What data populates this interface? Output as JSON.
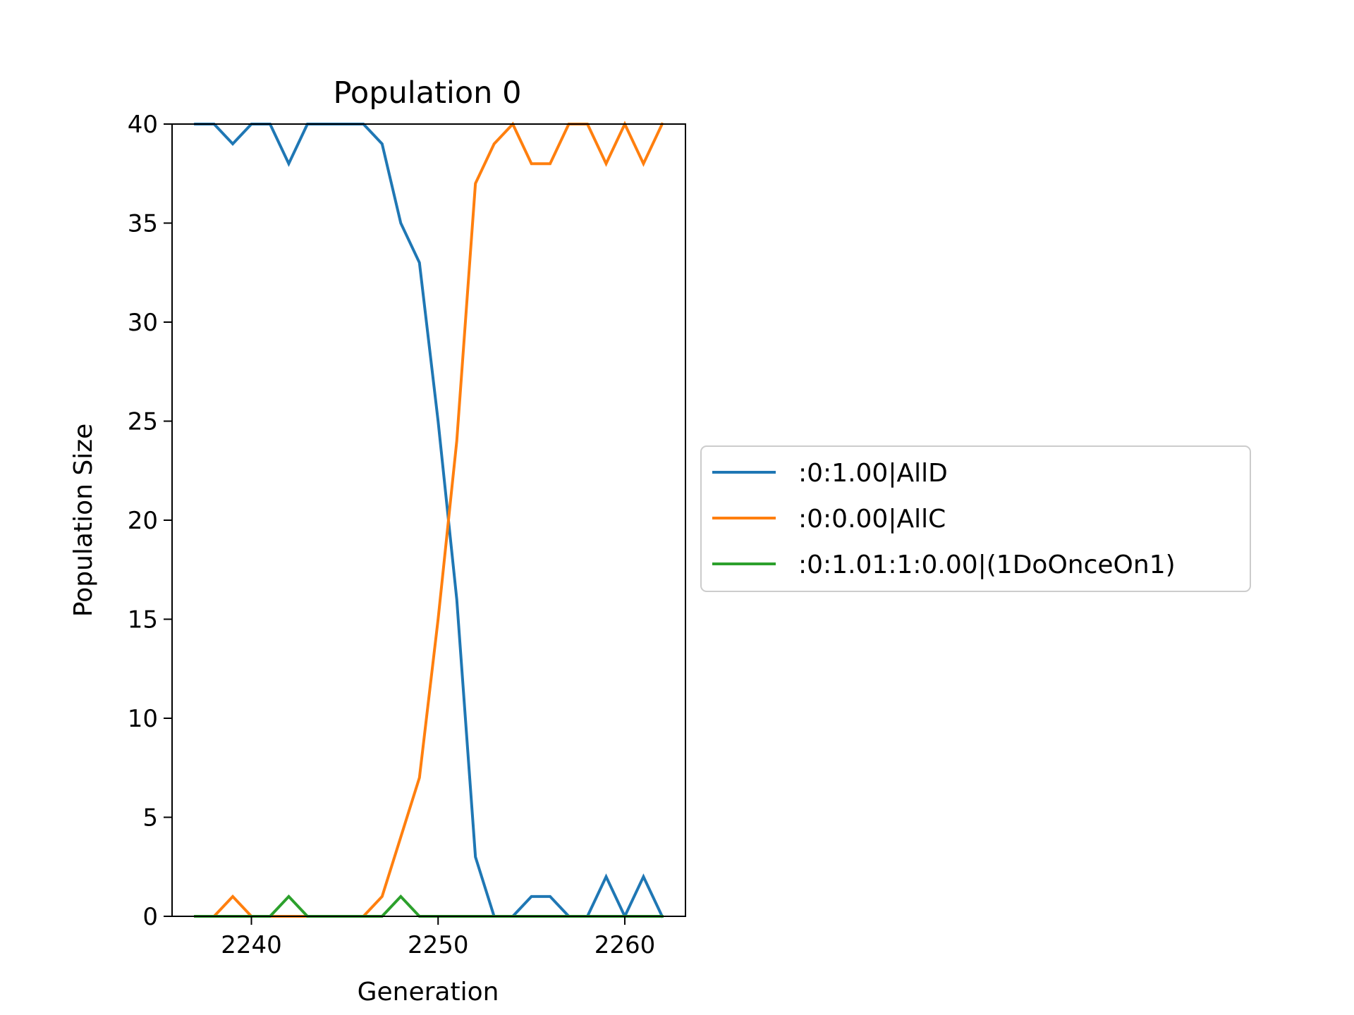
{
  "chart_data": {
    "type": "line",
    "title": "Population 0",
    "xlabel": "Generation",
    "ylabel": "Population Size",
    "xlim": [
      2235.75,
      2263.25
    ],
    "ylim": [
      0,
      40
    ],
    "xticks": [
      2240,
      2250,
      2260
    ],
    "yticks": [
      0,
      5,
      10,
      15,
      20,
      25,
      30,
      35,
      40
    ],
    "grid": false,
    "legend_position": "right, outside plot",
    "x": [
      2237,
      2238,
      2239,
      2240,
      2241,
      2242,
      2243,
      2244,
      2245,
      2246,
      2247,
      2248,
      2249,
      2250,
      2251,
      2252,
      2253,
      2254,
      2255,
      2256,
      2257,
      2258,
      2259,
      2260,
      2261,
      2262
    ],
    "series": [
      {
        "name": ":0:1.00|AllD",
        "color": "#1f77b4",
        "values": [
          40,
          40,
          39,
          40,
          40,
          38,
          40,
          40,
          40,
          40,
          39,
          35,
          33,
          25,
          16,
          3,
          0,
          0,
          1,
          1,
          0,
          0,
          2,
          0,
          2,
          0
        ]
      },
      {
        "name": ":0:0.00|AllC",
        "color": "#ff7f0e",
        "values": [
          0,
          0,
          1,
          0,
          0,
          0,
          0,
          0,
          0,
          0,
          1,
          4,
          7,
          15,
          24,
          37,
          39,
          40,
          38,
          38,
          40,
          40,
          38,
          40,
          38,
          40
        ]
      },
      {
        "name": ":0:1.01:1:0.00|(1DoOnceOn1)",
        "color": "#2ca02c",
        "values": [
          0,
          0,
          0,
          0,
          0,
          1,
          0,
          0,
          0,
          0,
          0,
          1,
          0,
          0,
          0,
          0,
          0,
          0,
          0,
          0,
          0,
          0,
          0,
          0,
          0,
          0
        ]
      }
    ]
  }
}
